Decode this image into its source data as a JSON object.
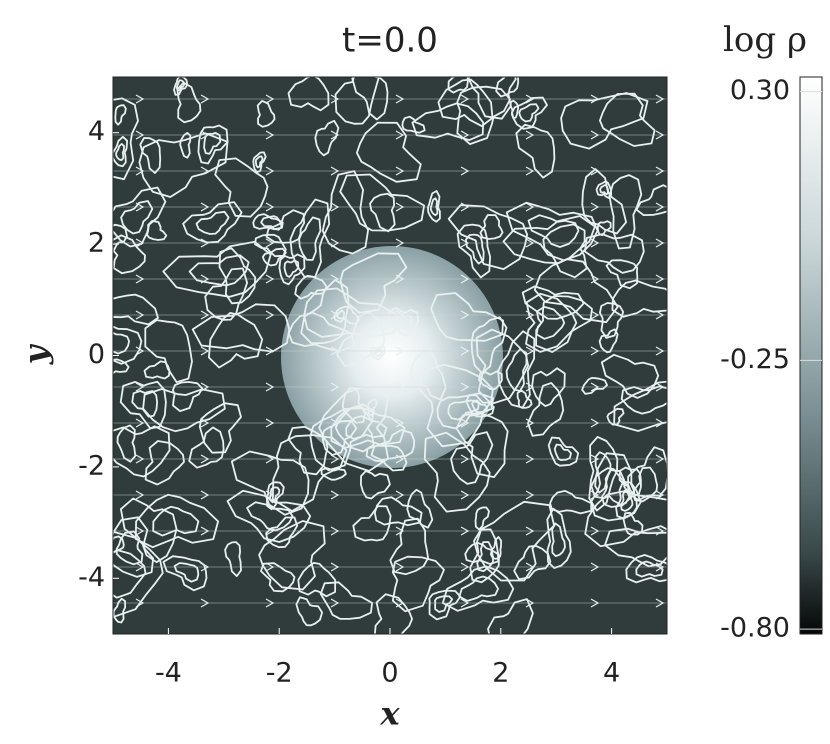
{
  "chart_data": {
    "type": "image",
    "title": "t=0.0",
    "x_label": "x",
    "y_label": "y",
    "xlim": [
      -5,
      5
    ],
    "ylim": [
      -5,
      5
    ],
    "xticks": [
      -4,
      -2,
      0,
      2,
      4
    ],
    "yticks": [
      -4,
      -2,
      0,
      2,
      4
    ],
    "colorbar": {
      "label": "log ρ",
      "lim": [
        -0.81,
        0.33
      ],
      "ticks": [
        {
          "value": 0.3,
          "label": "0.30"
        },
        -0.25,
        {
          "value": -0.8,
          "label": "-0.80"
        }
      ]
    }
  }
}
